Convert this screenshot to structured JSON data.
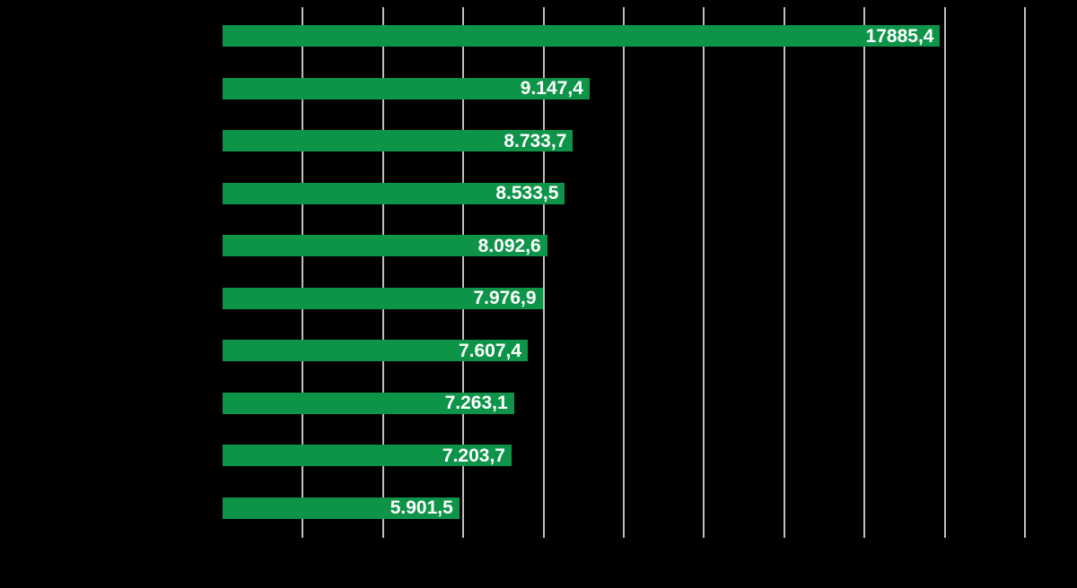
{
  "chart_data": {
    "type": "bar",
    "orientation": "horizontal",
    "title": "",
    "xlabel": "",
    "ylabel": "",
    "xlim": [
      0,
      20000
    ],
    "gridline_interval": 2000,
    "grid": true,
    "gridline_count": 10,
    "bars": [
      {
        "value": 17885.4,
        "display_label": "17885,4"
      },
      {
        "value": 9147.4,
        "display_label": "9.147,4"
      },
      {
        "value": 8733.7,
        "display_label": "8.733,7"
      },
      {
        "value": 8533.5,
        "display_label": "8.533,5"
      },
      {
        "value": 8092.6,
        "display_label": "8.092,6"
      },
      {
        "value": 7976.9,
        "display_label": "7.976,9"
      },
      {
        "value": 7607.4,
        "display_label": "7.607,4"
      },
      {
        "value": 7263.1,
        "display_label": "7.263,1"
      },
      {
        "value": 7203.7,
        "display_label": "7.203,7"
      },
      {
        "value": 5901.5,
        "display_label": "5.901,5"
      }
    ],
    "colors": {
      "bar": "#0E9448",
      "value_label": "#FFFFFF",
      "gridline": "#BFBFBF",
      "background": "#000000"
    }
  }
}
